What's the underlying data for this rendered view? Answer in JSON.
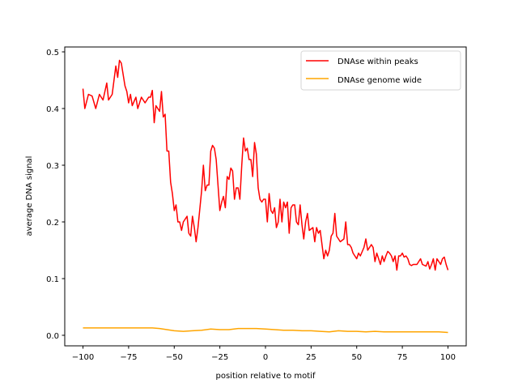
{
  "chart_data": {
    "type": "line",
    "title": "",
    "xlabel": "position relative to motif",
    "ylabel": "average DNA signal",
    "xlim": [
      -110,
      110
    ],
    "ylim": [
      -0.0186,
      0.5086
    ],
    "xticks": [
      -100,
      -75,
      -50,
      -25,
      0,
      25,
      50,
      75,
      100
    ],
    "xtick_labels": [
      "−100",
      "−75",
      "−50",
      "−25",
      "0",
      "25",
      "50",
      "75",
      "100"
    ],
    "yticks": [
      0.0,
      0.1,
      0.2,
      0.3,
      0.4,
      0.5
    ],
    "ytick_labels": [
      "0.0",
      "0.1",
      "0.2",
      "0.3",
      "0.4",
      "0.5"
    ],
    "grid": false,
    "legend_position": "top-right",
    "series": [
      {
        "name": "DNAse within peaks",
        "color": "#ff0000",
        "x": [
          -100,
          -99,
          -97,
          -95,
          -93,
          -91,
          -89,
          -87,
          -86,
          -84,
          -82,
          -81,
          -80,
          -79,
          -77,
          -76,
          -75,
          -74,
          -73,
          -71,
          -70,
          -68,
          -66,
          -64,
          -63,
          -62,
          -61,
          -60,
          -58,
          -57,
          -56,
          -55,
          -54,
          -53,
          -52,
          -51,
          -50,
          -49,
          -48,
          -47,
          -46,
          -45,
          -43,
          -42,
          -41,
          -40,
          -39,
          -38,
          -37,
          -35,
          -34,
          -33,
          -32,
          -31,
          -30,
          -29,
          -28,
          -27,
          -25,
          -24,
          -23,
          -22,
          -21,
          -20,
          -19,
          -18,
          -17,
          -16,
          -15,
          -14,
          -13,
          -12,
          -11,
          -10,
          -9,
          -8,
          -7,
          -6,
          -5,
          -4,
          -3,
          -2,
          -1,
          0,
          1,
          2,
          3,
          4,
          5,
          6,
          7,
          8,
          9,
          10,
          11,
          12,
          13,
          14,
          15,
          16,
          17,
          18,
          19,
          20,
          21,
          22,
          23,
          24,
          26,
          27,
          28,
          29,
          30,
          32,
          33,
          34,
          35,
          36,
          37,
          38,
          39,
          40,
          41,
          43,
          44,
          45,
          46,
          47,
          48,
          50,
          51,
          52,
          54,
          55,
          56,
          58,
          59,
          60,
          61,
          62,
          63,
          64,
          65,
          66,
          67,
          68,
          69,
          70,
          71,
          72,
          73,
          74,
          75,
          76,
          77,
          78,
          79,
          80,
          81,
          83,
          85,
          86,
          88,
          89,
          90,
          91,
          92,
          93,
          94,
          95,
          96,
          97,
          98,
          99,
          100
        ],
        "y": [
          0.435,
          0.4,
          0.425,
          0.422,
          0.4,
          0.425,
          0.415,
          0.445,
          0.415,
          0.425,
          0.475,
          0.455,
          0.485,
          0.48,
          0.44,
          0.43,
          0.41,
          0.425,
          0.405,
          0.42,
          0.4,
          0.42,
          0.41,
          0.42,
          0.42,
          0.432,
          0.375,
          0.405,
          0.395,
          0.43,
          0.385,
          0.39,
          0.325,
          0.325,
          0.27,
          0.25,
          0.22,
          0.23,
          0.2,
          0.2,
          0.185,
          0.2,
          0.21,
          0.18,
          0.175,
          0.21,
          0.19,
          0.165,
          0.19,
          0.255,
          0.3,
          0.255,
          0.265,
          0.265,
          0.325,
          0.335,
          0.33,
          0.31,
          0.22,
          0.235,
          0.245,
          0.225,
          0.28,
          0.275,
          0.295,
          0.29,
          0.24,
          0.26,
          0.26,
          0.24,
          0.3,
          0.348,
          0.325,
          0.33,
          0.31,
          0.31,
          0.28,
          0.34,
          0.32,
          0.26,
          0.24,
          0.235,
          0.24,
          0.24,
          0.2,
          0.25,
          0.22,
          0.215,
          0.225,
          0.19,
          0.2,
          0.24,
          0.2,
          0.235,
          0.225,
          0.235,
          0.18,
          0.225,
          0.23,
          0.23,
          0.2,
          0.195,
          0.23,
          0.195,
          0.17,
          0.2,
          0.215,
          0.185,
          0.19,
          0.165,
          0.19,
          0.18,
          0.185,
          0.135,
          0.15,
          0.14,
          0.15,
          0.175,
          0.18,
          0.215,
          0.175,
          0.17,
          0.165,
          0.17,
          0.2,
          0.16,
          0.16,
          0.155,
          0.145,
          0.135,
          0.145,
          0.14,
          0.155,
          0.17,
          0.15,
          0.16,
          0.155,
          0.13,
          0.145,
          0.135,
          0.125,
          0.14,
          0.13,
          0.14,
          0.148,
          0.145,
          0.14,
          0.13,
          0.14,
          0.115,
          0.14,
          0.14,
          0.145,
          0.138,
          0.14,
          0.135,
          0.125,
          0.123,
          0.125,
          0.125,
          0.135,
          0.125,
          0.122,
          0.13,
          0.117,
          0.125,
          0.135,
          0.115,
          0.135,
          0.13,
          0.125,
          0.135,
          0.138,
          0.125,
          0.115
        ]
      },
      {
        "name": "DNAse genome wide",
        "color": "#ffa500",
        "x": [
          -100,
          -90,
          -80,
          -70,
          -62,
          -58,
          -54,
          -50,
          -45,
          -40,
          -35,
          -30,
          -25,
          -20,
          -15,
          -10,
          -5,
          0,
          5,
          10,
          15,
          20,
          25,
          30,
          35,
          40,
          45,
          50,
          55,
          60,
          65,
          70,
          75,
          80,
          85,
          90,
          95,
          100
        ],
        "y": [
          0.013,
          0.013,
          0.013,
          0.013,
          0.013,
          0.012,
          0.01,
          0.008,
          0.007,
          0.008,
          0.009,
          0.011,
          0.01,
          0.01,
          0.012,
          0.012,
          0.012,
          0.011,
          0.01,
          0.009,
          0.009,
          0.008,
          0.008,
          0.007,
          0.006,
          0.008,
          0.007,
          0.007,
          0.006,
          0.007,
          0.006,
          0.006,
          0.006,
          0.006,
          0.006,
          0.006,
          0.006,
          0.005
        ]
      }
    ]
  }
}
